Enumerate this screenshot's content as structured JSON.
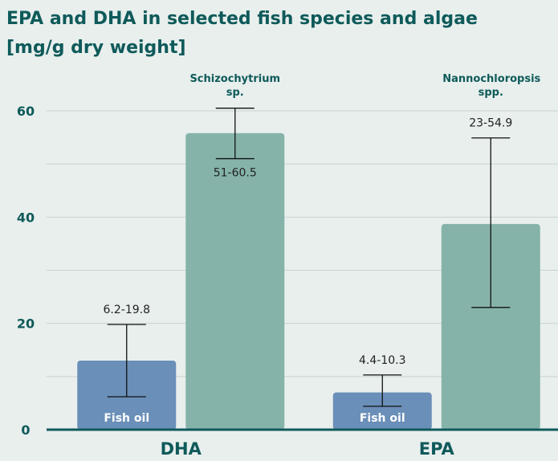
{
  "chart_data": {
    "type": "bar",
    "title": "EPA and DHA in selected fish species and algae [mg/g dry weight]",
    "categories": [
      "DHA",
      "EPA"
    ],
    "series": [
      {
        "name": "Fish oil",
        "color": "#6a8fb8",
        "values": [
          13,
          7
        ],
        "lows": [
          6.2,
          4.4
        ],
        "highs": [
          19.8,
          10.3
        ],
        "range_labels": [
          "6.2-19.8",
          "4.4-10.3"
        ]
      },
      {
        "bar_labels": [
          "Schizochytrium sp.",
          "Nannochloropsis spp."
        ],
        "color": "#85b3aa",
        "values": [
          55.8,
          38.7
        ],
        "lows": [
          51,
          23
        ],
        "highs": [
          60.5,
          54.9
        ],
        "range_labels": [
          "51-60.5",
          "23-54.9"
        ]
      }
    ],
    "ylim": [
      0,
      60
    ],
    "yticks": [
      0,
      20,
      40,
      60
    ],
    "minor_yticks": [
      10,
      30,
      50
    ],
    "grid": true
  }
}
